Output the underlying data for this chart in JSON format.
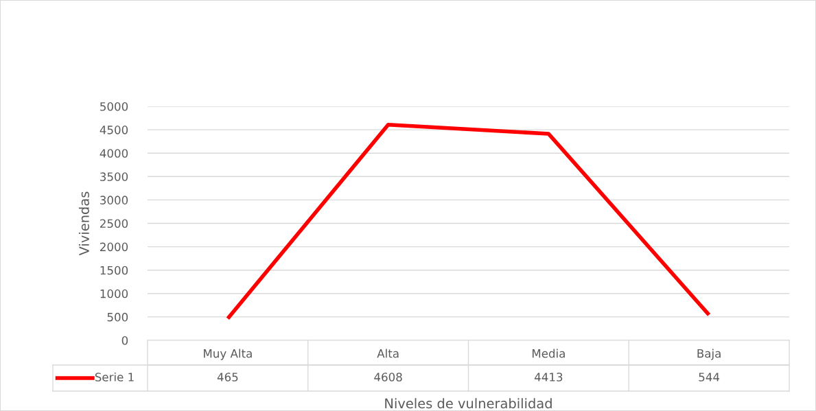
{
  "chart_data": {
    "type": "line",
    "xlabel": "Niveles de vulnerabilidad",
    "ylabel": "Viviendas",
    "categories": [
      "Muy Alta",
      "Alta",
      "Media",
      "Baja"
    ],
    "series": [
      {
        "name": "Serie 1",
        "color": "#ff0000",
        "values": [
          465,
          4608,
          4413,
          544
        ]
      }
    ],
    "ylim": [
      0,
      5000
    ],
    "yticks": [
      0,
      500,
      1000,
      1500,
      2000,
      2500,
      3000,
      3500,
      4000,
      4500,
      5000
    ],
    "grid": "y",
    "legend": "bottom",
    "data_labels": true,
    "marker": "none",
    "line_style": "solid"
  }
}
